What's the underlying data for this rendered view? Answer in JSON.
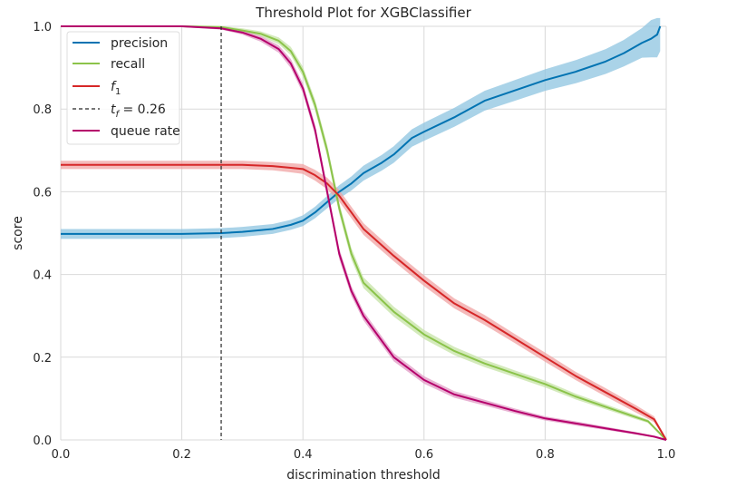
{
  "chart_data": {
    "type": "line",
    "title": "Threshold Plot for XGBClassifier",
    "xlabel": "discrimination threshold",
    "ylabel": "score",
    "xlim": [
      0.0,
      1.0
    ],
    "ylim": [
      0.0,
      1.0
    ],
    "x_ticks": [
      "0.0",
      "0.2",
      "0.4",
      "0.6",
      "0.8",
      "1.0"
    ],
    "y_ticks": [
      "0.0",
      "0.2",
      "0.4",
      "0.6",
      "0.8",
      "1.0"
    ],
    "grid": true,
    "legend_position": "top-left",
    "legend": {
      "precision": "precision",
      "recall": "recall",
      "f1_main": "f",
      "f1_sub": "1",
      "threshold_main": "t",
      "threshold_sub": "f",
      "threshold_rest": " = 0.26",
      "queue_rate": "queue rate"
    },
    "threshold": 0.265,
    "series": [
      {
        "name": "precision",
        "color": "#0173b2",
        "band_color": "#8ec4e0",
        "x": [
          0.0,
          0.1,
          0.2,
          0.265,
          0.3,
          0.35,
          0.38,
          0.4,
          0.42,
          0.44,
          0.46,
          0.48,
          0.5,
          0.53,
          0.55,
          0.58,
          0.6,
          0.65,
          0.7,
          0.75,
          0.8,
          0.85,
          0.9,
          0.93,
          0.96,
          0.975,
          0.985,
          0.99
        ],
        "y": [
          0.498,
          0.498,
          0.498,
          0.5,
          0.503,
          0.51,
          0.52,
          0.53,
          0.55,
          0.575,
          0.6,
          0.62,
          0.645,
          0.67,
          0.69,
          0.73,
          0.745,
          0.78,
          0.82,
          0.845,
          0.87,
          0.89,
          0.915,
          0.935,
          0.96,
          0.97,
          0.98,
          1.0
        ],
        "band": [
          0.012,
          0.012,
          0.012,
          0.012,
          0.012,
          0.012,
          0.012,
          0.013,
          0.014,
          0.015,
          0.016,
          0.017,
          0.018,
          0.019,
          0.02,
          0.021,
          0.022,
          0.023,
          0.024,
          0.025,
          0.026,
          0.028,
          0.03,
          0.032,
          0.036,
          0.045,
          0.055,
          0.06
        ]
      },
      {
        "name": "recall",
        "color": "#8bc34a",
        "band_color": "#c5e3a6",
        "x": [
          0.0,
          0.1,
          0.2,
          0.265,
          0.3,
          0.33,
          0.36,
          0.38,
          0.4,
          0.42,
          0.44,
          0.46,
          0.48,
          0.5,
          0.55,
          0.6,
          0.65,
          0.7,
          0.75,
          0.8,
          0.85,
          0.9,
          0.95,
          0.97,
          1.0
        ],
        "y": [
          1.0,
          1.0,
          1.0,
          0.998,
          0.99,
          0.982,
          0.965,
          0.94,
          0.89,
          0.81,
          0.7,
          0.56,
          0.45,
          0.38,
          0.31,
          0.255,
          0.215,
          0.185,
          0.16,
          0.135,
          0.105,
          0.08,
          0.055,
          0.045,
          0.0
        ],
        "band": [
          0.002,
          0.002,
          0.002,
          0.003,
          0.005,
          0.006,
          0.008,
          0.01,
          0.012,
          0.013,
          0.014,
          0.014,
          0.014,
          0.013,
          0.012,
          0.011,
          0.01,
          0.009,
          0.008,
          0.008,
          0.007,
          0.006,
          0.005,
          0.004,
          0.002
        ]
      },
      {
        "name": "f1",
        "color": "#d62728",
        "band_color": "#f0a3a3",
        "x": [
          0.0,
          0.1,
          0.2,
          0.265,
          0.3,
          0.35,
          0.38,
          0.4,
          0.42,
          0.44,
          0.46,
          0.48,
          0.5,
          0.55,
          0.6,
          0.65,
          0.7,
          0.75,
          0.8,
          0.85,
          0.9,
          0.95,
          0.98,
          1.0
        ],
        "y": [
          0.665,
          0.665,
          0.665,
          0.665,
          0.665,
          0.662,
          0.658,
          0.655,
          0.64,
          0.62,
          0.59,
          0.55,
          0.51,
          0.445,
          0.385,
          0.33,
          0.29,
          0.245,
          0.2,
          0.155,
          0.115,
          0.075,
          0.05,
          0.0
        ],
        "band": [
          0.01,
          0.01,
          0.01,
          0.01,
          0.01,
          0.01,
          0.011,
          0.012,
          0.013,
          0.014,
          0.014,
          0.014,
          0.014,
          0.013,
          0.013,
          0.012,
          0.012,
          0.011,
          0.011,
          0.01,
          0.01,
          0.009,
          0.007,
          0.003
        ]
      },
      {
        "name": "queue rate",
        "color": "#b5006b",
        "band_color": "#e099c4",
        "x": [
          0.0,
          0.1,
          0.2,
          0.265,
          0.3,
          0.33,
          0.36,
          0.38,
          0.4,
          0.42,
          0.44,
          0.46,
          0.48,
          0.5,
          0.55,
          0.6,
          0.65,
          0.7,
          0.75,
          0.8,
          0.85,
          0.9,
          0.95,
          0.98,
          1.0
        ],
        "y": [
          1.0,
          1.0,
          1.0,
          0.995,
          0.985,
          0.97,
          0.945,
          0.91,
          0.85,
          0.75,
          0.6,
          0.45,
          0.36,
          0.3,
          0.2,
          0.145,
          0.11,
          0.09,
          0.07,
          0.052,
          0.04,
          0.028,
          0.016,
          0.008,
          0.0
        ],
        "band": [
          0.002,
          0.002,
          0.002,
          0.003,
          0.005,
          0.007,
          0.009,
          0.011,
          0.012,
          0.013,
          0.013,
          0.013,
          0.012,
          0.011,
          0.01,
          0.009,
          0.008,
          0.007,
          0.006,
          0.005,
          0.005,
          0.004,
          0.003,
          0.002,
          0.001
        ]
      }
    ],
    "threshold_line_color": "#262626"
  }
}
